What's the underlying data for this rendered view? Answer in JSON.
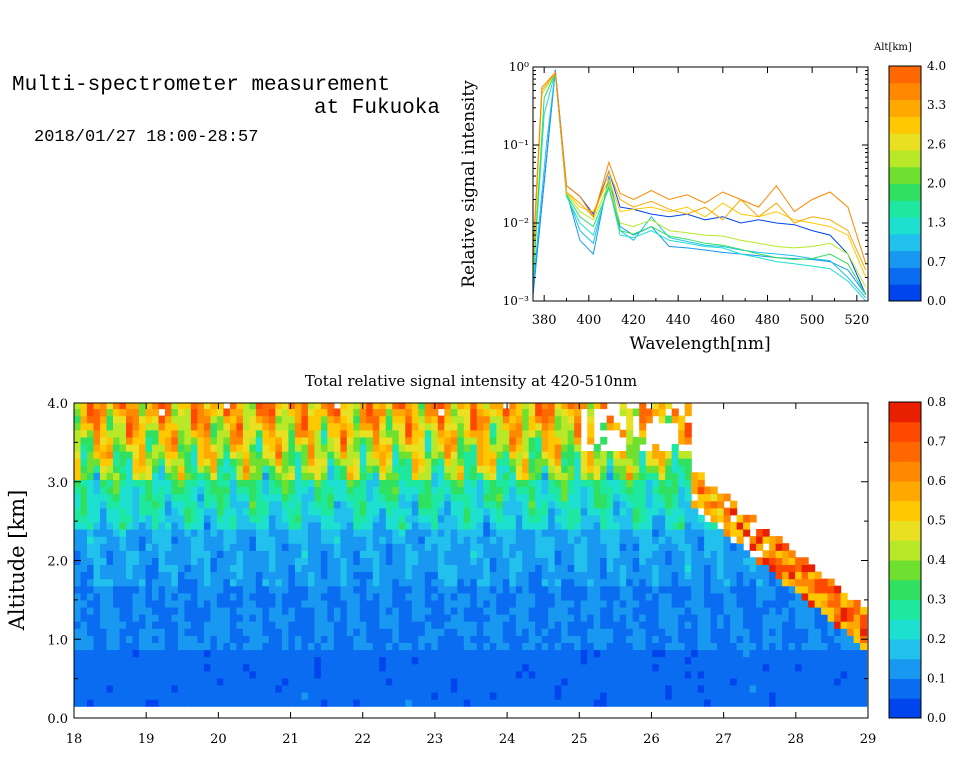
{
  "header": {
    "title_line1": "Multi-spectrometer measurement",
    "title_line2": "at Fukuoka",
    "datetime": "2018/01/27 18:00-28:57"
  },
  "chart_data": [
    {
      "type": "line",
      "title": "",
      "xlabel": "Wavelength[nm]",
      "ylabel": "Relative signal intensity",
      "xlim": [
        375,
        525
      ],
      "ylim": [
        0.001,
        1
      ],
      "yscale": "log",
      "x_ticks": [
        380,
        400,
        420,
        440,
        460,
        480,
        500,
        520
      ],
      "y_tick_labels": [
        "10⁻³",
        "10⁻²",
        "10⁻¹",
        "10⁰"
      ],
      "y_tick_values": [
        0.001,
        0.01,
        0.1,
        1
      ],
      "colorbar": {
        "title": "Alt[km]",
        "ticks": [
          "0.0",
          "0.7",
          "1.3",
          "2.0",
          "2.6",
          "3.3",
          "4.0"
        ],
        "colors": [
          "#0044ee",
          "#0a6cf0",
          "#1898f0",
          "#22c0ec",
          "#1ee0d0",
          "#1ee8a0",
          "#30e060",
          "#70e030",
          "#b8e828",
          "#e8e020",
          "#ffc800",
          "#ffa800",
          "#ff8800",
          "#ff6800"
        ]
      },
      "series": [
        {
          "color": "#0044ee",
          "points": [
            [
              375,
              0.0012
            ],
            [
              385,
              0.92
            ],
            [
              390,
              0.03
            ],
            [
              396,
              0.022
            ],
            [
              402,
              0.013
            ],
            [
              409,
              0.046
            ],
            [
              414,
              0.016
            ],
            [
              420,
              0.015
            ],
            [
              428,
              0.013
            ],
            [
              436,
              0.012
            ],
            [
              444,
              0.013
            ],
            [
              452,
              0.011
            ],
            [
              460,
              0.012
            ],
            [
              468,
              0.01
            ],
            [
              476,
              0.011
            ],
            [
              484,
              0.01
            ],
            [
              492,
              0.0095
            ],
            [
              500,
              0.008
            ],
            [
              508,
              0.007
            ],
            [
              516,
              0.004
            ],
            [
              524,
              0.0012
            ]
          ]
        },
        {
          "color": "#1898f0",
          "points": [
            [
              375,
              0.0012
            ],
            [
              385,
              0.9
            ],
            [
              390,
              0.025
            ],
            [
              396,
              0.006
            ],
            [
              402,
              0.004
            ],
            [
              409,
              0.04
            ],
            [
              414,
              0.009
            ],
            [
              420,
              0.007
            ],
            [
              428,
              0.009
            ],
            [
              436,
              0.005
            ],
            [
              444,
              0.0048
            ],
            [
              452,
              0.0045
            ],
            [
              460,
              0.0042
            ],
            [
              468,
              0.004
            ],
            [
              476,
              0.0038
            ],
            [
              484,
              0.0036
            ],
            [
              492,
              0.0035
            ],
            [
              500,
              0.0034
            ],
            [
              508,
              0.0032
            ],
            [
              516,
              0.0025
            ],
            [
              524,
              0.0012
            ]
          ]
        },
        {
          "color": "#22c0ec",
          "points": [
            [
              375,
              0.0015
            ],
            [
              381,
              0.1
            ],
            [
              385,
              0.88
            ],
            [
              390,
              0.024
            ],
            [
              396,
              0.008
            ],
            [
              402,
              0.0055
            ],
            [
              409,
              0.035
            ],
            [
              414,
              0.008
            ],
            [
              420,
              0.006
            ],
            [
              428,
              0.012
            ],
            [
              436,
              0.0065
            ],
            [
              444,
              0.0058
            ],
            [
              452,
              0.0052
            ],
            [
              460,
              0.005
            ],
            [
              468,
              0.0045
            ],
            [
              476,
              0.0042
            ],
            [
              484,
              0.004
            ],
            [
              492,
              0.0038
            ],
            [
              500,
              0.0035
            ],
            [
              508,
              0.0033
            ],
            [
              516,
              0.002
            ],
            [
              524,
              0.0011
            ]
          ]
        },
        {
          "color": "#1ee0d0",
          "points": [
            [
              375,
              0.0018
            ],
            [
              380,
              0.25
            ],
            [
              385,
              0.86
            ],
            [
              390,
              0.022
            ],
            [
              396,
              0.01
            ],
            [
              402,
              0.007
            ],
            [
              409,
              0.03
            ],
            [
              414,
              0.007
            ],
            [
              420,
              0.0065
            ],
            [
              428,
              0.008
            ],
            [
              436,
              0.006
            ],
            [
              444,
              0.0055
            ],
            [
              452,
              0.005
            ],
            [
              460,
              0.0048
            ],
            [
              468,
              0.004
            ],
            [
              476,
              0.0036
            ],
            [
              484,
              0.0032
            ],
            [
              492,
              0.003
            ],
            [
              500,
              0.0028
            ],
            [
              508,
              0.0026
            ],
            [
              516,
              0.0018
            ],
            [
              524,
              0.001
            ]
          ]
        },
        {
          "color": "#30e060",
          "points": [
            [
              375,
              0.002
            ],
            [
              380,
              0.4
            ],
            [
              385,
              0.85
            ],
            [
              390,
              0.023
            ],
            [
              396,
              0.012
            ],
            [
              402,
              0.009
            ],
            [
              409,
              0.028
            ],
            [
              414,
              0.008
            ],
            [
              420,
              0.0072
            ],
            [
              428,
              0.009
            ],
            [
              436,
              0.0068
            ],
            [
              444,
              0.0062
            ],
            [
              452,
              0.0055
            ],
            [
              460,
              0.0052
            ],
            [
              468,
              0.0046
            ],
            [
              476,
              0.004
            ],
            [
              484,
              0.0036
            ],
            [
              492,
              0.0034
            ],
            [
              500,
              0.0035
            ],
            [
              508,
              0.004
            ],
            [
              516,
              0.003
            ],
            [
              524,
              0.0012
            ]
          ]
        },
        {
          "color": "#b8e828",
          "points": [
            [
              375,
              0.0025
            ],
            [
              379,
              0.45
            ],
            [
              385,
              0.84
            ],
            [
              390,
              0.024
            ],
            [
              396,
              0.014
            ],
            [
              402,
              0.011
            ],
            [
              409,
              0.032
            ],
            [
              414,
              0.01
            ],
            [
              420,
              0.009
            ],
            [
              428,
              0.011
            ],
            [
              436,
              0.008
            ],
            [
              444,
              0.0075
            ],
            [
              452,
              0.007
            ],
            [
              460,
              0.0068
            ],
            [
              468,
              0.006
            ],
            [
              476,
              0.0055
            ],
            [
              484,
              0.005
            ],
            [
              492,
              0.0048
            ],
            [
              500,
              0.005
            ],
            [
              508,
              0.0055
            ],
            [
              516,
              0.004
            ],
            [
              524,
              0.0015
            ]
          ]
        },
        {
          "color": "#ffc800",
          "points": [
            [
              375,
              0.003
            ],
            [
              379,
              0.5
            ],
            [
              385,
              0.84
            ],
            [
              390,
              0.025
            ],
            [
              396,
              0.016
            ],
            [
              402,
              0.014
            ],
            [
              409,
              0.036
            ],
            [
              414,
              0.014
            ],
            [
              420,
              0.015
            ],
            [
              428,
              0.016
            ],
            [
              436,
              0.014
            ],
            [
              444,
              0.016
            ],
            [
              452,
              0.012
            ],
            [
              460,
              0.018
            ],
            [
              468,
              0.013
            ],
            [
              476,
              0.012
            ],
            [
              484,
              0.014
            ],
            [
              492,
              0.011
            ],
            [
              500,
              0.01
            ],
            [
              508,
              0.009
            ],
            [
              516,
              0.007
            ],
            [
              524,
              0.002
            ]
          ]
        },
        {
          "color": "#ffa800",
          "points": [
            [
              375,
              0.0035
            ],
            [
              379,
              0.5
            ],
            [
              385,
              0.84
            ],
            [
              390,
              0.025
            ],
            [
              396,
              0.018
            ],
            [
              402,
              0.012
            ],
            [
              409,
              0.045
            ],
            [
              414,
              0.02
            ],
            [
              420,
              0.016
            ],
            [
              428,
              0.019
            ],
            [
              436,
              0.015
            ],
            [
              444,
              0.013
            ],
            [
              452,
              0.016
            ],
            [
              460,
              0.011
            ],
            [
              468,
              0.02
            ],
            [
              476,
              0.012
            ],
            [
              484,
              0.018
            ],
            [
              492,
              0.01
            ],
            [
              500,
              0.012
            ],
            [
              508,
              0.011
            ],
            [
              516,
              0.008
            ],
            [
              524,
              0.0025
            ]
          ]
        },
        {
          "color": "#ff8800",
          "points": [
            [
              375,
              0.004
            ],
            [
              379,
              0.55
            ],
            [
              385,
              0.85
            ],
            [
              390,
              0.03
            ],
            [
              396,
              0.022
            ],
            [
              402,
              0.012
            ],
            [
              409,
              0.06
            ],
            [
              414,
              0.024
            ],
            [
              420,
              0.02
            ],
            [
              428,
              0.026
            ],
            [
              436,
              0.02
            ],
            [
              444,
              0.023
            ],
            [
              452,
              0.018
            ],
            [
              460,
              0.025
            ],
            [
              468,
              0.02
            ],
            [
              476,
              0.016
            ],
            [
              484,
              0.03
            ],
            [
              492,
              0.014
            ],
            [
              500,
              0.02
            ],
            [
              508,
              0.025
            ],
            [
              516,
              0.016
            ],
            [
              524,
              0.003
            ]
          ]
        }
      ]
    },
    {
      "type": "heatmap",
      "title": "Total relative signal intensity at 420-510nm",
      "xlabel": "",
      "ylabel": "Altitude [km]",
      "xlim": [
        18,
        29
      ],
      "ylim": [
        0,
        4
      ],
      "x_ticks": [
        18,
        19,
        20,
        21,
        22,
        23,
        24,
        25,
        26,
        27,
        28,
        29
      ],
      "y_tick_labels": [
        "0.0",
        "1.0",
        "2.0",
        "3.0",
        "4.0"
      ],
      "y_tick_values": [
        0,
        1,
        2,
        3,
        4
      ],
      "colorbar": {
        "ticks": [
          "0.0",
          "0.1",
          "0.2",
          "0.3",
          "0.4",
          "0.5",
          "0.6",
          "0.7",
          "0.8"
        ],
        "colors": [
          "#0044ee",
          "#0a6cf0",
          "#1898f0",
          "#22c0ec",
          "#1ee0d0",
          "#1ee8a0",
          "#30e060",
          "#70e030",
          "#b8e828",
          "#e8e020",
          "#ffc800",
          "#ffa800",
          "#ff8800",
          "#ff6800",
          "#ff4800",
          "#e82000"
        ]
      }
    }
  ]
}
